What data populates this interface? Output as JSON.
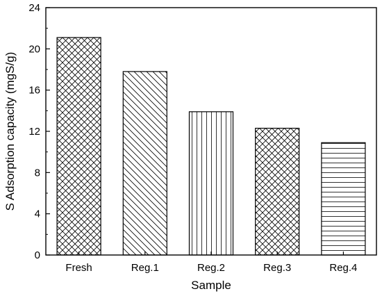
{
  "chart_data": {
    "type": "bar",
    "categories": [
      "Fresh",
      "Reg.1",
      "Reg.2",
      "Reg.3",
      "Reg.4"
    ],
    "values": [
      21.1,
      17.8,
      13.9,
      12.3,
      10.9
    ],
    "patterns": [
      "crosshatch",
      "diagonal",
      "vertical",
      "crosshatch",
      "horizontal"
    ],
    "xlabel": "Sample",
    "ylabel": "S Adsorption capacity (mgS/g)",
    "ylim": [
      0,
      24
    ],
    "yticks": [
      0,
      4,
      8,
      12,
      16,
      20,
      24
    ],
    "grid": false,
    "bar_fill": "#ffffff",
    "bar_stroke": "#000000"
  }
}
